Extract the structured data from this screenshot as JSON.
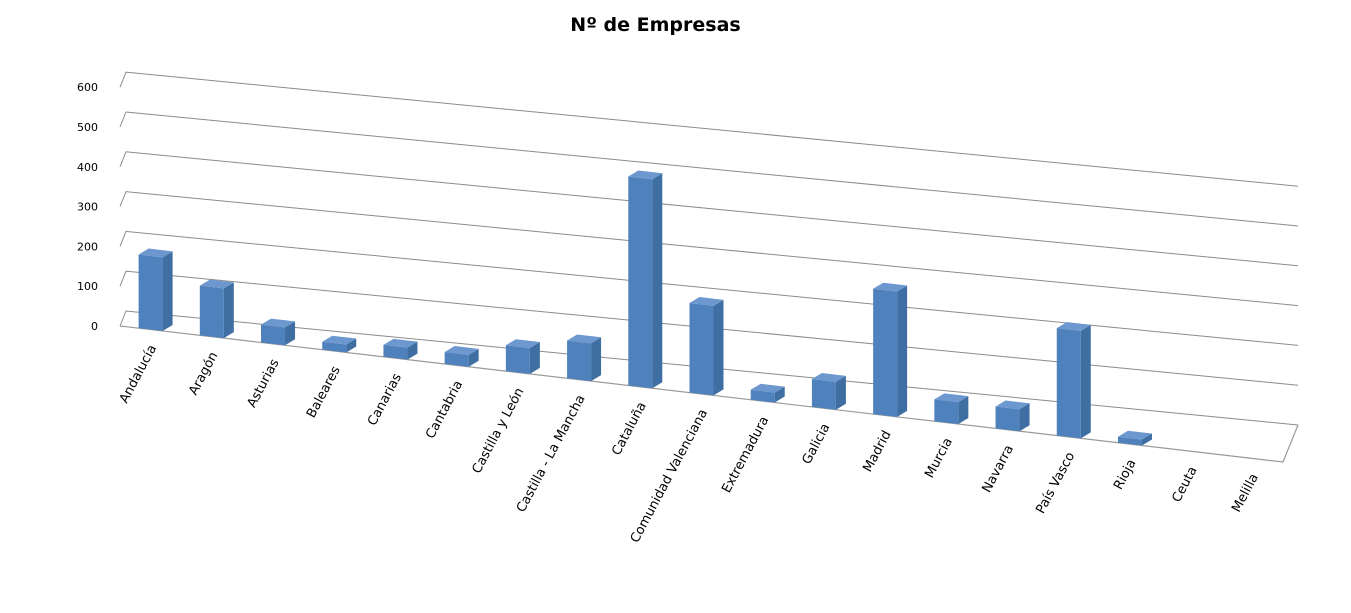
{
  "chart_data": {
    "type": "bar",
    "title": "Nº de Empresas",
    "xlabel": "",
    "ylabel": "",
    "ylim": [
      0,
      600
    ],
    "yticks": [
      "0",
      "100",
      "200",
      "300",
      "400",
      "500",
      "600"
    ],
    "grid": true,
    "legend": "none",
    "bar_color": "#4F81BD",
    "categories": [
      "Andalucía",
      "Aragón",
      "Asturias",
      "Baleares",
      "Canarias",
      "Cantabria",
      "Castilla y León",
      "Castilla - La Mancha",
      "Cataluña",
      "Comunidad Valenciana",
      "Extremadura",
      "Galicia",
      "Madrid",
      "Murcia",
      "Navarra",
      "País Vasco",
      "Rioja",
      "Ceuta",
      "Melilla"
    ],
    "values": [
      185,
      125,
      45,
      20,
      30,
      30,
      65,
      95,
      525,
      225,
      25,
      70,
      315,
      55,
      55,
      270,
      15,
      0,
      0
    ]
  }
}
